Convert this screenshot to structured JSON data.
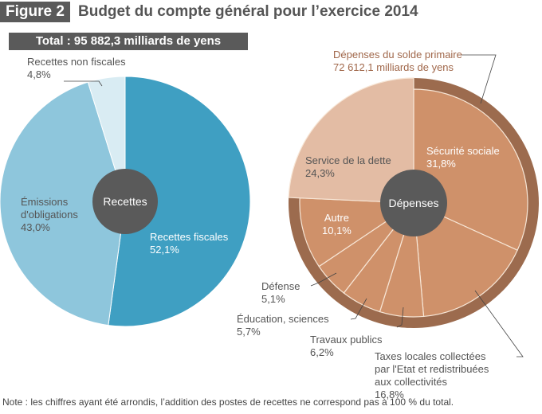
{
  "figure": {
    "badge": "Figure 2",
    "title": "Budget du compte général pour l’exercice 2014",
    "total": "Total : 95 882,3 milliards de yens",
    "note": "Note : les chiffres ayant été arrondis, l’addition des postes de recettes ne correspond pas à 100 % du total."
  },
  "colors": {
    "recettes_fiscales": "#3f9fc2",
    "emissions": "#8ec6dc",
    "non_fiscales": "#d9ecf3",
    "depenses_primaires": "#cf916a",
    "service_dette": "#e3bca4",
    "ring": "#9c6b4e",
    "center": "#5a5a5a"
  },
  "chart_data": [
    {
      "type": "pie",
      "title": "Recettes",
      "center_label": "Recettes",
      "unit": "%",
      "slices": [
        {
          "label": "Recettes fiscales",
          "value": 52.1,
          "text": "52,1%"
        },
        {
          "label": "Émissions d'obligations",
          "value": 43.0,
          "text": "43,0%"
        },
        {
          "label": "Recettes non fiscales",
          "value": 4.8,
          "text": "4,8%"
        }
      ]
    },
    {
      "type": "pie",
      "title": "Dépenses",
      "center_label": "Dépenses",
      "unit": "%",
      "ring": {
        "label": "Dépenses du solde primaire",
        "value_text": "72 612,1 milliards de yens"
      },
      "slices": [
        {
          "label": "Sécurité sociale",
          "value": 31.8,
          "text": "31,8%",
          "primary": true
        },
        {
          "label": "Taxes locales collectées par l'Etat et redistribuées aux collectivités",
          "value": 16.8,
          "text": "16,8%",
          "primary": true
        },
        {
          "label": "Travaux publics",
          "value": 6.2,
          "text": "6,2%",
          "primary": true
        },
        {
          "label": "Éducation, sciences",
          "value": 5.7,
          "text": "5,7%",
          "primary": true
        },
        {
          "label": "Défense",
          "value": 5.1,
          "text": "5,1%",
          "primary": true
        },
        {
          "label": "Autre",
          "value": 10.1,
          "text": "10,1%",
          "primary": true
        },
        {
          "label": "Service de la dette",
          "value": 24.3,
          "text": "24,3%",
          "primary": false
        }
      ]
    }
  ],
  "labels": {
    "nonfisc": {
      "l1": "Recettes non fiscales",
      "l2": "4,8%"
    },
    "emis": {
      "l1": "Émissions",
      "l2": "d'obligations",
      "l3": "43,0%"
    },
    "fisc": {
      "l1": "Recettes fiscales",
      "l2": "52,1%"
    },
    "ring": {
      "l1": "Dépenses du solde primaire",
      "l2": "72 612,1 milliards de yens"
    },
    "secu": {
      "l1": "Sécurité sociale",
      "l2": "31,8%"
    },
    "dette": {
      "l1": "Service de la dette",
      "l2": "24,3%"
    },
    "autre": {
      "l1": "Autre",
      "l2": "10,1%"
    },
    "defense": {
      "l1": "Défense",
      "l2": "5,1%"
    },
    "edu": {
      "l1": "Éducation, sciences",
      "l2": "5,7%"
    },
    "travaux": {
      "l1": "Travaux publics",
      "l2": "6,2%"
    },
    "taxes": {
      "l1": "Taxes locales collectées",
      "l2": "par l'Etat et redistribuées",
      "l3": "aux collectivités",
      "l4": "16,8%"
    }
  }
}
